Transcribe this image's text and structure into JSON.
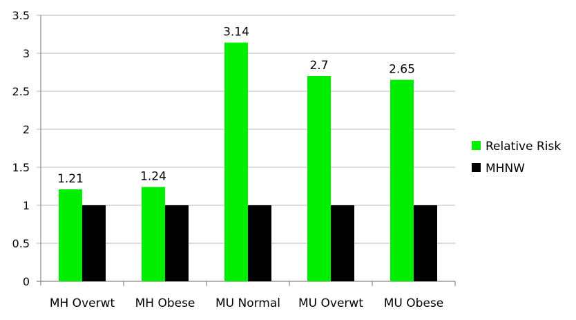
{
  "chart_data": {
    "type": "bar",
    "title": "",
    "xlabel": "",
    "ylabel": "",
    "categories": [
      "MH Overwt",
      "MH Obese",
      "MU Normal",
      "MU Overwt",
      "MU Obese"
    ],
    "series": [
      {
        "name": "Relative Risk",
        "values": [
          1.21,
          1.24,
          3.14,
          2.7,
          2.65
        ],
        "color": "#00ee00",
        "data_labels": [
          "1.21",
          "1.24",
          "3.14",
          "2.7",
          "2.65"
        ]
      },
      {
        "name": "MHNW",
        "values": [
          1,
          1,
          1,
          1,
          1
        ],
        "color": "#000000"
      }
    ],
    "ylim": [
      0,
      3.5
    ],
    "yticks": [
      "0",
      "0.5",
      "1",
      "1.5",
      "2",
      "2.5",
      "3",
      "3.5"
    ],
    "grid": true,
    "legend_position": "right"
  }
}
